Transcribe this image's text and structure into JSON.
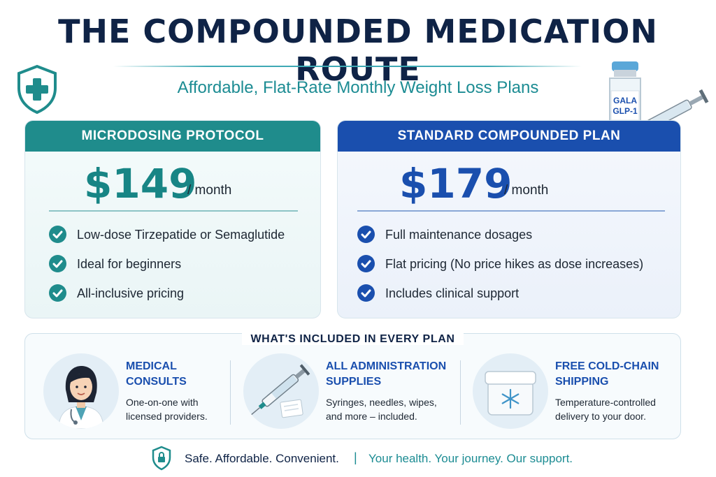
{
  "header": {
    "title": "THE COMPOUNDED MEDICATION ROUTE",
    "subtitle": "Affordable, Flat-Rate Monthly Weight Loss Plans"
  },
  "vial": {
    "label_line1": "GALA",
    "label_line2": "GLP-1"
  },
  "plans": [
    {
      "name": "MICRODOSING PROTOCOL",
      "price": "$149",
      "period": "/ month",
      "features": [
        "Low-dose Tirzepatide or Semaglutide",
        "Ideal for beginners",
        "All-inclusive pricing"
      ],
      "accent": "#1f8c8c"
    },
    {
      "name": "STANDARD COMPOUNDED PLAN",
      "price": "$179",
      "period": "/ month",
      "features": [
        "Full maintenance dosages",
        "Flat pricing (No price hikes as dose increases)",
        "Includes clinical support"
      ],
      "accent": "#1a4fae"
    }
  ],
  "included": {
    "title": "WHAT'S INCLUDED IN EVERY PLAN",
    "items": [
      {
        "head_line1": "MEDICAL",
        "head_line2": "CONSULTS",
        "body_line1": "One-on-one with",
        "body_line2": "licensed providers.",
        "icon": "doctor-icon"
      },
      {
        "head_line1": "ALL ADMINISTRATION",
        "head_line2": "SUPPLIES",
        "body_line1": "Syringes, needles, wipes,",
        "body_line2": "and more – included.",
        "icon": "syringe-icon"
      },
      {
        "head_line1": "FREE COLD-CHAIN",
        "head_line2": "SHIPPING",
        "body_line1": "Temperature-controlled",
        "body_line2": "delivery to your door.",
        "icon": "cold-box-icon"
      }
    ]
  },
  "footer": {
    "left": "Safe. Affordable. Convenient.",
    "separator": "|",
    "right": "Your health. Your journey. Our support."
  },
  "colors": {
    "navy": "#0f2346",
    "teal": "#1f8c8c",
    "blue": "#1a4fae"
  },
  "icons": [
    "shield-cross-icon",
    "vial-icon",
    "syringe-icon",
    "check-icon",
    "doctor-icon",
    "cold-box-icon",
    "shield-lock-icon"
  ]
}
